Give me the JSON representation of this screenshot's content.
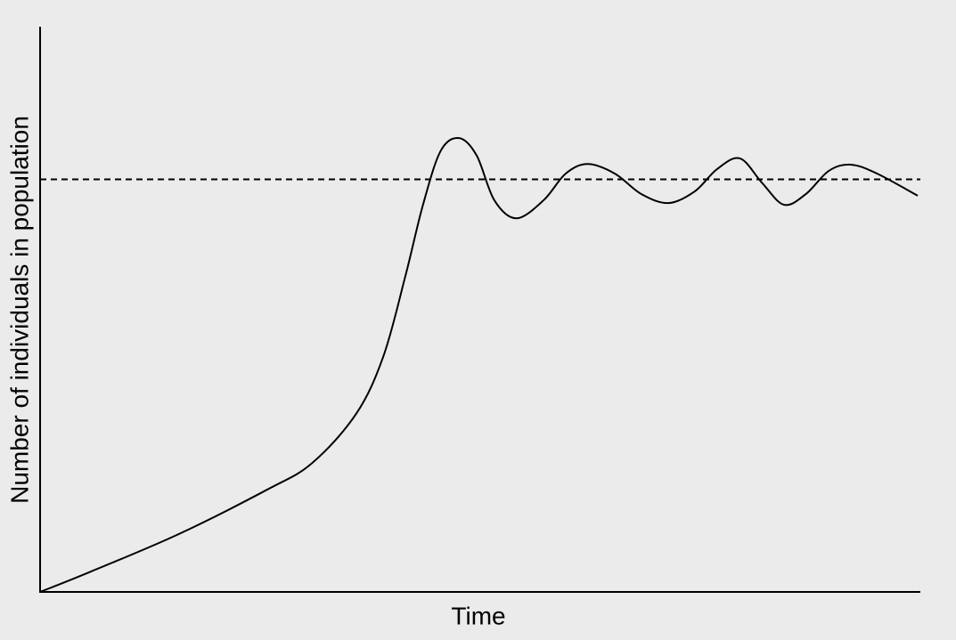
{
  "chart_data": {
    "type": "line",
    "x_label": "Time",
    "y_label": "Number of individuals in population",
    "xlim": [
      0,
      100
    ],
    "ylim": [
      0,
      100
    ],
    "x": [
      0,
      5.6,
      15.7,
      25.8,
      30.9,
      35.9,
      39.0,
      41.5,
      43.5,
      45.5,
      47.6,
      49.6,
      51.6,
      54.1,
      57.2,
      59.7,
      62.2,
      65.3,
      68.3,
      71.4,
      74.4,
      76.9,
      79.5,
      82.0,
      84.5,
      87.0,
      89.6,
      92.1,
      95.1,
      99.7
    ],
    "series": [
      {
        "color": "#000000",
        "values": [
          0,
          3.5,
          10.2,
          18.1,
          22.8,
          31.5,
          41.7,
          55.9,
          68.5,
          78.0,
          80.3,
          77.2,
          69.3,
          66.1,
          69.3,
          74.0,
          75.7,
          74.0,
          70.4,
          68.8,
          70.9,
          74.8,
          76.7,
          72.4,
          68.5,
          70.4,
          74.5,
          75.6,
          74.0,
          70.1
        ]
      }
    ],
    "hlines": [
      {
        "value": 73,
        "style": "dashed",
        "color": "#000000"
      }
    ]
  }
}
